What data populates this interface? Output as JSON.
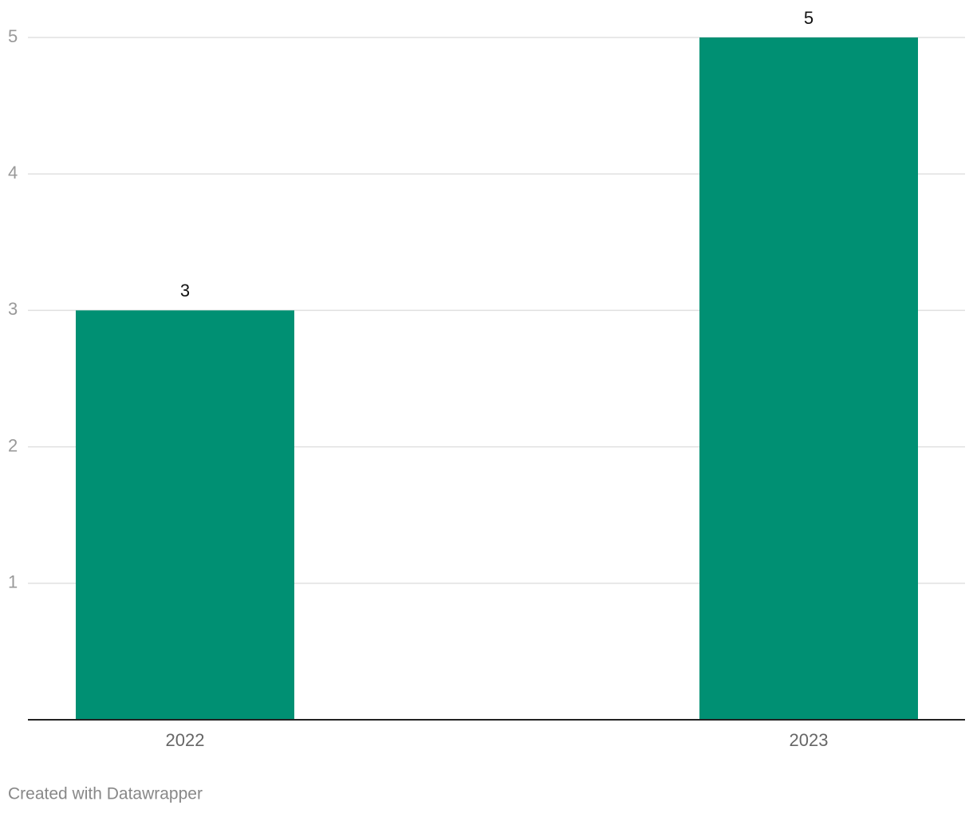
{
  "chart_data": {
    "type": "bar",
    "categories": [
      "2022",
      "2023"
    ],
    "values": [
      3,
      5
    ],
    "color": "#009073",
    "ylim": [
      0,
      5
    ],
    "yticks": [
      1,
      2,
      3,
      4,
      5
    ],
    "grid": true,
    "footer": "Created with Datawrapper"
  }
}
